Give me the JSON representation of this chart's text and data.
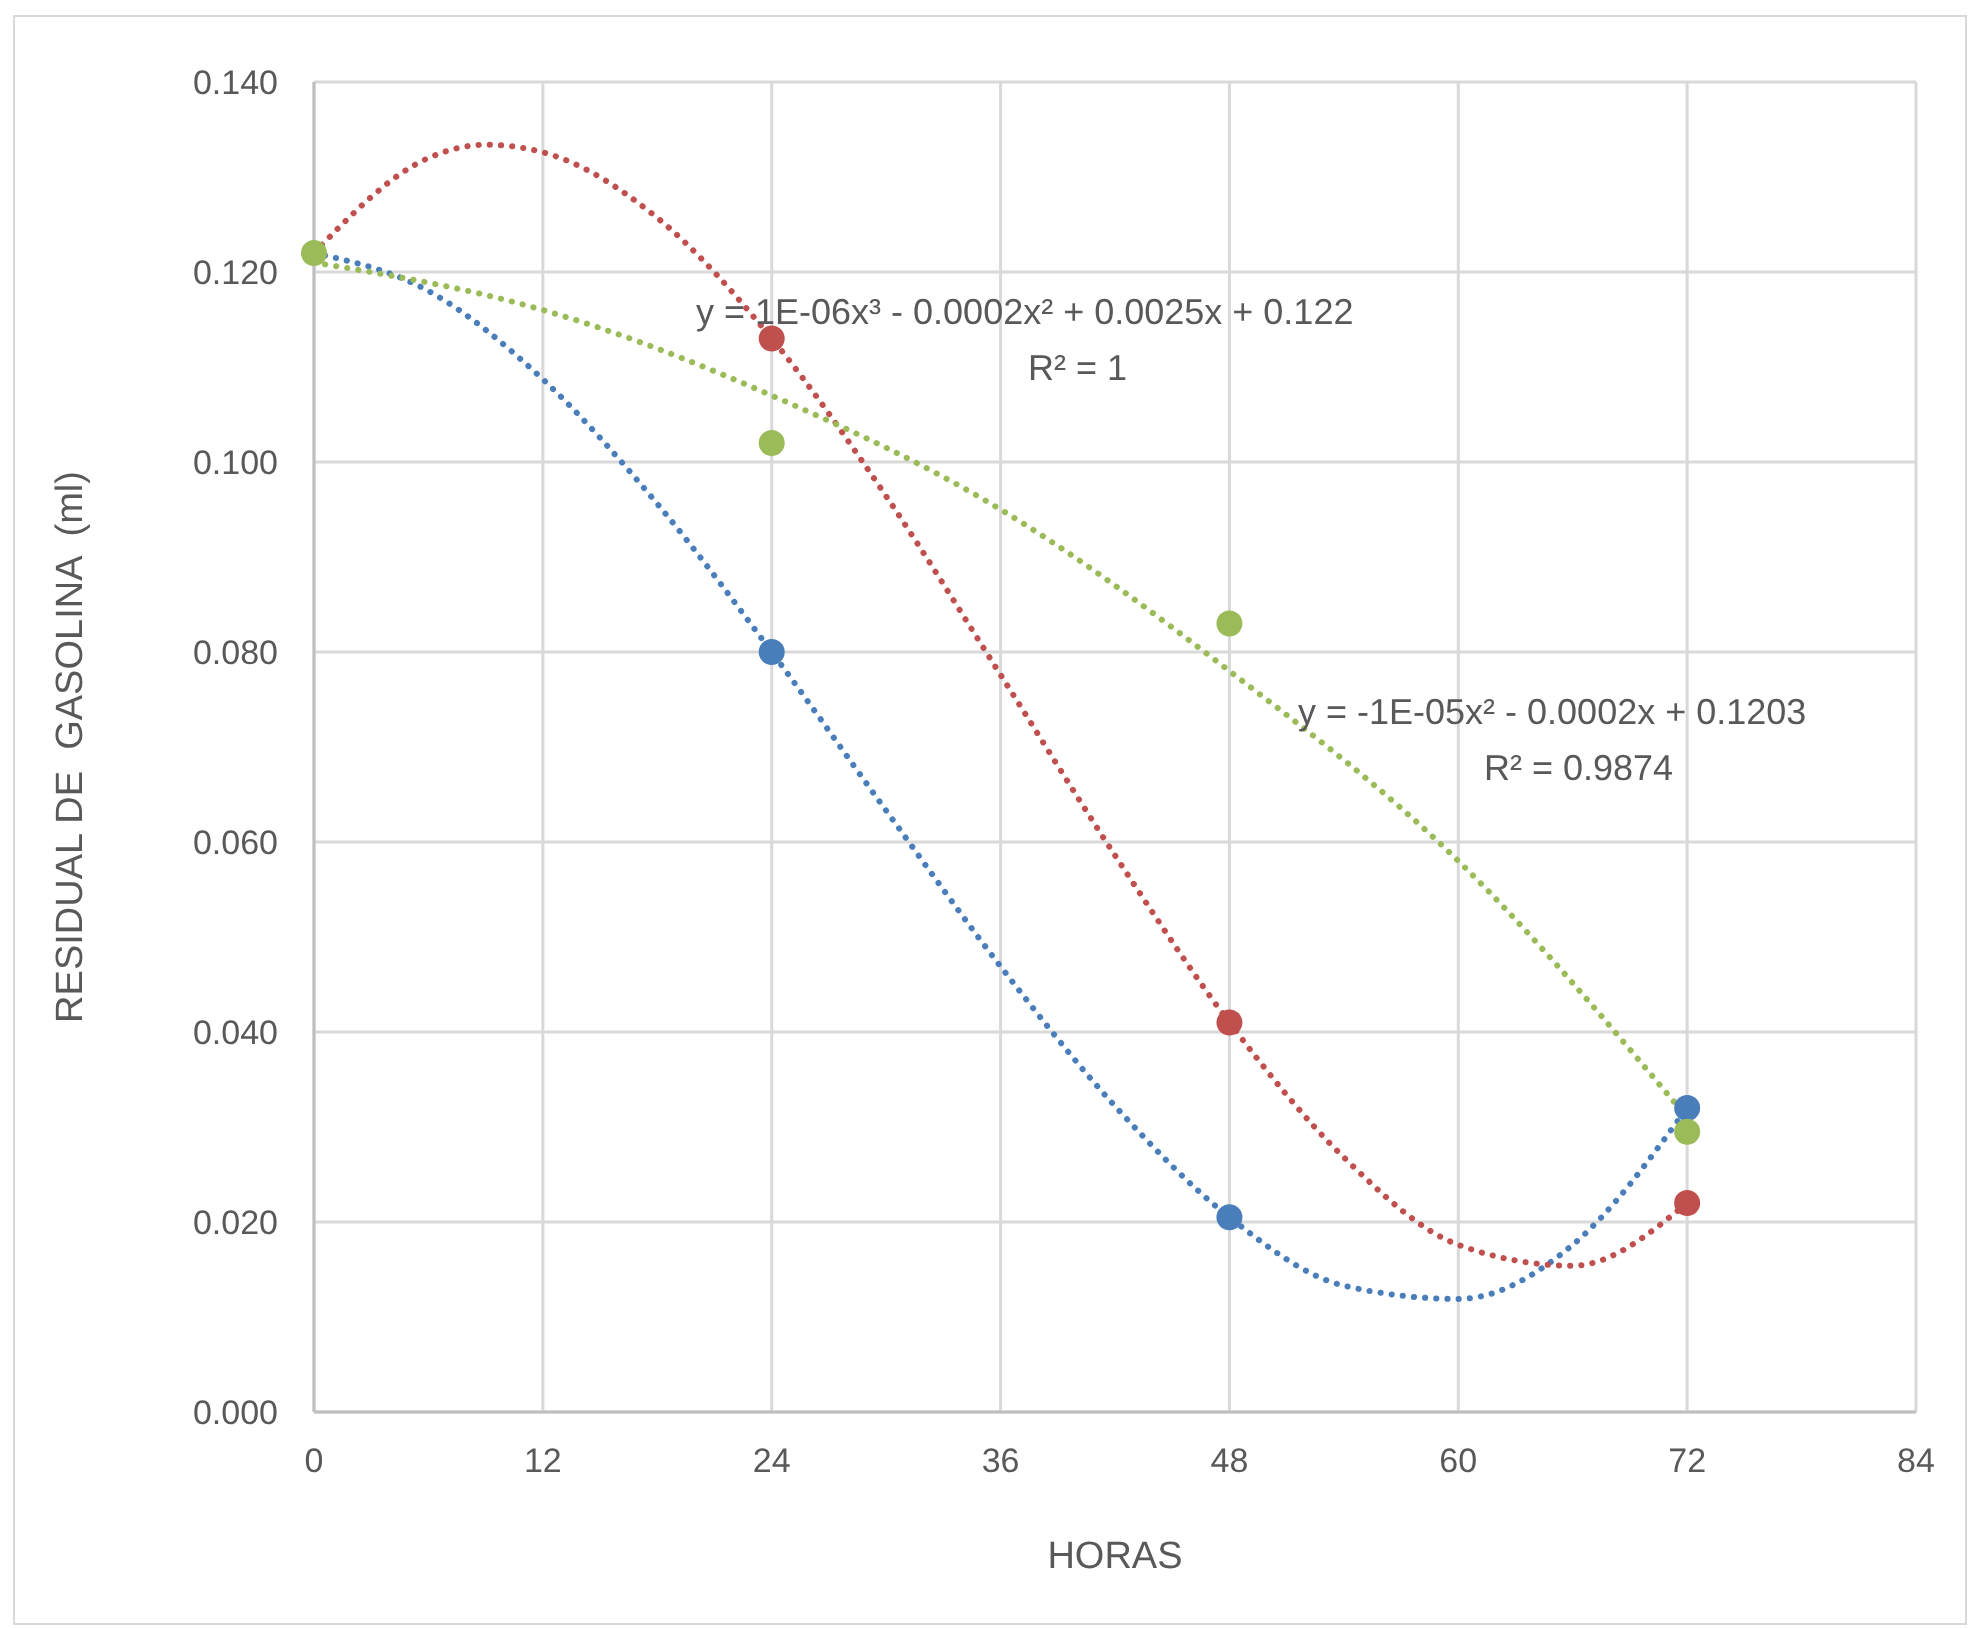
{
  "chart_data": {
    "type": "scatter",
    "xlabel": "HORAS",
    "ylabel": "RESIDUAL DE  GASOLINA  (ml)",
    "xlim": [
      0,
      84
    ],
    "xticks": [
      0,
      12,
      24,
      36,
      48,
      60,
      72,
      84
    ],
    "ylim": [
      0,
      0.14
    ],
    "yticks": [
      {
        "value": 0,
        "label": "0.000"
      },
      {
        "value": 0.02,
        "label": "0.020"
      },
      {
        "value": 0.04,
        "label": "0.040"
      },
      {
        "value": 0.06,
        "label": "0.060"
      },
      {
        "value": 0.08,
        "label": "0.080"
      },
      {
        "value": 0.1,
        "label": "0.100"
      },
      {
        "value": 0.12,
        "label": "0.120"
      },
      {
        "value": 0.14,
        "label": "0.140"
      }
    ],
    "grid": true,
    "marker": "circle",
    "series": [
      {
        "type": "line",
        "color": "#4a7ebb",
        "line_style": "dotted",
        "marker": "none",
        "x": [
          0,
          6,
          12,
          18,
          24,
          30,
          36,
          42,
          48,
          54,
          60,
          66,
          72
        ],
        "values": [
          0.122,
          0.118,
          0.1087,
          0.0956,
          0.08,
          0.0633,
          0.0469,
          0.0322,
          0.0205,
          0.0133,
          0.0119,
          0.0176,
          0.032
        ]
      },
      {
        "type": "line",
        "color": "#c0504d",
        "line_style": "dotted",
        "marker": "none",
        "x": [
          0,
          6,
          9,
          12,
          18,
          24,
          30,
          36,
          42,
          48,
          54,
          60,
          66,
          72
        ],
        "values": [
          0.122,
          0.132,
          0.1334,
          0.1326,
          0.1257,
          0.113,
          0.0964,
          0.0776,
          0.0586,
          0.041,
          0.0268,
          0.0176,
          0.0154,
          0.022
        ]
      },
      {
        "type": "line",
        "color": "#9bbb59",
        "line_style": "dotted",
        "marker": "none",
        "x": [
          0,
          12,
          24,
          36,
          48,
          60,
          72
        ],
        "values": [
          0.121,
          0.116,
          0.107,
          0.095,
          0.078,
          0.058,
          0.031
        ]
      },
      {
        "color": "#4a7ebb",
        "x": [
          24,
          48,
          72
        ],
        "values": [
          0.08,
          0.0205,
          0.032
        ]
      },
      {
        "color": "#c0504d",
        "x": [
          24,
          48,
          72
        ],
        "values": [
          0.113,
          0.041,
          0.022
        ]
      },
      {
        "color": "#9bbb59",
        "x": [
          0,
          24,
          48,
          72
        ],
        "values": [
          0.122,
          0.102,
          0.083,
          0.0295
        ]
      }
    ],
    "annotations": [
      "y = 1E-06x³ - 0.0002x² + 0.0025x + 0.122",
      "R² = 1",
      "y = -1E-05x² - 0.0002x + 0.1203",
      "R² = 0.9874"
    ]
  }
}
